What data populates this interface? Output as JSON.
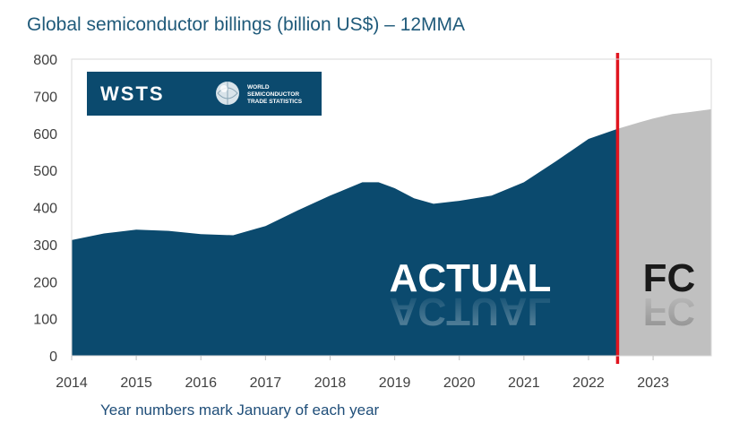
{
  "chart_data": {
    "type": "area",
    "title": "Global semiconductor billings (billion US$) – 12MMA",
    "subtitle": "",
    "xlabel": "",
    "ylabel": "",
    "note": "Year numbers mark January of each year",
    "ylim": [
      0,
      800
    ],
    "xlim": [
      2014,
      2023.9
    ],
    "y_ticks": [
      "0",
      "100",
      "200",
      "300",
      "400",
      "500",
      "600",
      "700",
      "800"
    ],
    "x_ticks": [
      "2014",
      "2015",
      "2016",
      "2017",
      "2018",
      "2019",
      "2020",
      "2021",
      "2022",
      "2023"
    ],
    "grid": false,
    "split_year": 2022.45,
    "series": [
      {
        "name": "",
        "label": "ACTUAL",
        "color": "#0b4a6e",
        "x": [
          2014,
          2014.5,
          2015,
          2015.5,
          2016,
          2016.5,
          2017,
          2017.5,
          2018,
          2018.5,
          2018.75,
          2019,
          2019.3,
          2019.6,
          2020,
          2020.5,
          2021,
          2021.5,
          2022,
          2022.45
        ],
        "y": [
          312,
          330,
          340,
          337,
          328,
          325,
          350,
          392,
          432,
          468,
          468,
          452,
          425,
          410,
          418,
          432,
          468,
          525,
          585,
          612
        ]
      },
      {
        "name": "",
        "label": "FC",
        "color": "#c0c0c0",
        "x": [
          2022.45,
          2022.8,
          2023,
          2023.3,
          2023.6,
          2023.9
        ],
        "y": [
          612,
          630,
          640,
          652,
          658,
          665
        ]
      }
    ],
    "reference_line_color": "#e0141e",
    "logo": {
      "name": "WSTS",
      "subtext": [
        "WORLD",
        "SEMICONDUCTOR",
        "TRADE STATISTICS"
      ]
    }
  }
}
